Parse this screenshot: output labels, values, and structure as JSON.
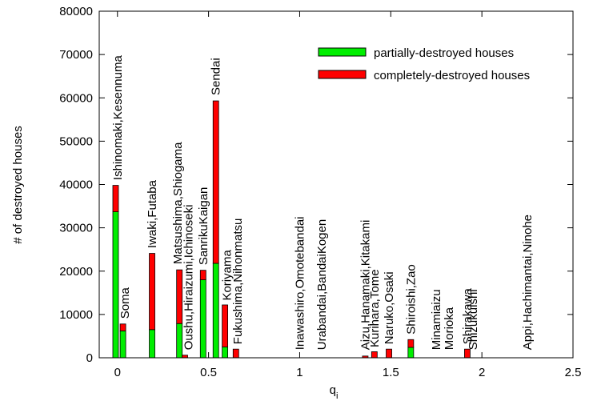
{
  "chart_data": {
    "type": "bar",
    "xlabel": "q",
    "xlabel_sub": "i",
    "ylabel": "# of destroyed houses",
    "xlim": [
      -0.1,
      2.5
    ],
    "ylim": [
      0,
      80000
    ],
    "x_ticks": [
      0,
      0.5,
      1,
      1.5,
      2,
      2.5
    ],
    "x_tick_labels": [
      "0",
      "0.5",
      "1",
      "1.5",
      "2",
      "2.5"
    ],
    "y_ticks": [
      0,
      10000,
      20000,
      30000,
      40000,
      50000,
      60000,
      70000,
      80000
    ],
    "y_tick_labels": [
      "0",
      "10000",
      "20000",
      "30000",
      "40000",
      "50000",
      "60000",
      "70000",
      "80000"
    ],
    "stacked": true,
    "legend_position": "top-right",
    "series": [
      {
        "name": "partially-destroyed houses",
        "color": "#00ee00"
      },
      {
        "name": "completely-destroyed houses",
        "color": "#ff0000"
      }
    ],
    "bars": [
      {
        "x": -0.01,
        "partial": 33700,
        "complete": 6100
      },
      {
        "x": 0.03,
        "partial": 6200,
        "complete": 1600
      },
      {
        "x": 0.19,
        "partial": 6500,
        "complete": 17600
      },
      {
        "x": 0.34,
        "partial": 7900,
        "complete": 12400
      },
      {
        "x": 0.37,
        "partial": 0,
        "complete": 600
      },
      {
        "x": 0.47,
        "partial": 18000,
        "complete": 2200
      },
      {
        "x": 0.54,
        "partial": 21800,
        "complete": 37500
      },
      {
        "x": 0.59,
        "partial": 2500,
        "complete": 9700
      },
      {
        "x": 0.65,
        "partial": 0,
        "complete": 2000
      },
      {
        "x": 1.36,
        "partial": 0,
        "complete": 400
      },
      {
        "x": 1.41,
        "partial": 0,
        "complete": 1400
      },
      {
        "x": 1.49,
        "partial": 0,
        "complete": 2000
      },
      {
        "x": 1.61,
        "partial": 2400,
        "complete": 1800
      },
      {
        "x": 1.92,
        "partial": 0,
        "complete": 2000
      }
    ],
    "annotations": [
      {
        "text": "Ishinomaki,Kesennuma",
        "x": 0.0,
        "y": 41000
      },
      {
        "text": "Soma",
        "x": 0.04,
        "y": 9000
      },
      {
        "text": "Iwaki,Futaba",
        "x": 0.19,
        "y": 25300
      },
      {
        "text": "Matsushima,Shiogama",
        "x": 0.33,
        "y": 21600
      },
      {
        "text": "Oushu,Hiraizumi,Ichinoseki",
        "x": 0.39,
        "y": 1800
      },
      {
        "text": "SanrikuKaigan",
        "x": 0.47,
        "y": 21400
      },
      {
        "text": "Sendai",
        "x": 0.54,
        "y": 60600
      },
      {
        "text": "Koriyama",
        "x": 0.6,
        "y": 13200
      },
      {
        "text": "Fukushima,Nihonmatsu",
        "x": 0.66,
        "y": 3100
      },
      {
        "text": "Inawashiro,Omotebandai",
        "x": 1.0,
        "y": 1800
      },
      {
        "text": "Urabandai,BandaiKogen",
        "x": 1.12,
        "y": 1800
      },
      {
        "text": "Aizu,Hanamaki,Kitakami",
        "x": 1.36,
        "y": 1800
      },
      {
        "text": "Kurihara,Tome",
        "x": 1.41,
        "y": 2400
      },
      {
        "text": "Naruko,Osaki",
        "x": 1.49,
        "y": 3100
      },
      {
        "text": "Shiroishi,Zao",
        "x": 1.61,
        "y": 5400
      },
      {
        "text": "Minamiaizu",
        "x": 1.75,
        "y": 1800
      },
      {
        "text": "Morioka",
        "x": 1.82,
        "y": 1800
      },
      {
        "text": "Shirakawa",
        "x": 1.92,
        "y": 3100
      },
      {
        "text": "Shizukuishi",
        "x": 1.95,
        "y": 1800
      },
      {
        "text": "Appi,Hachimantai,Ninohe",
        "x": 2.25,
        "y": 1800
      }
    ]
  }
}
